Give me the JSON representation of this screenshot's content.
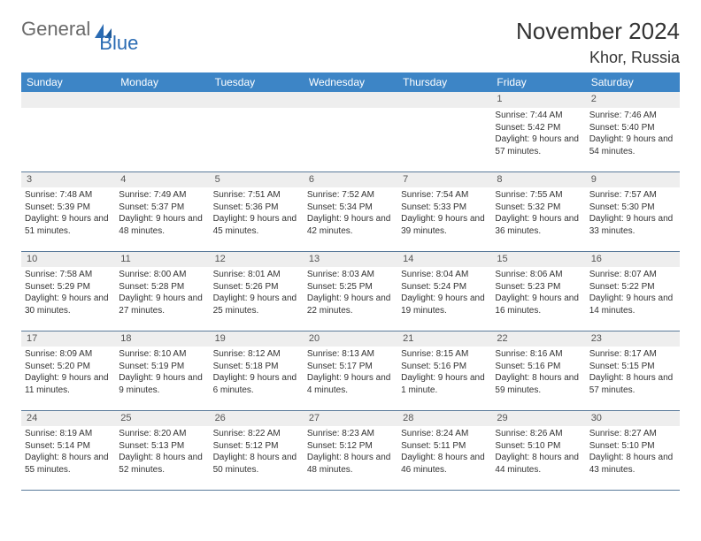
{
  "brand": {
    "part1": "General",
    "part2": "Blue"
  },
  "title": "November 2024",
  "location": "Khor, Russia",
  "colors": {
    "header_bg": "#3d85c6",
    "header_fg": "#ffffff",
    "daynum_bg": "#eeeeee",
    "border": "#5a7a9a",
    "text": "#333333",
    "logo_gray": "#6a6a6a",
    "logo_blue": "#2a6bb3"
  },
  "day_headers": [
    "Sunday",
    "Monday",
    "Tuesday",
    "Wednesday",
    "Thursday",
    "Friday",
    "Saturday"
  ],
  "weeks": [
    [
      {
        "num": "",
        "lines": []
      },
      {
        "num": "",
        "lines": []
      },
      {
        "num": "",
        "lines": []
      },
      {
        "num": "",
        "lines": []
      },
      {
        "num": "",
        "lines": []
      },
      {
        "num": "1",
        "lines": [
          "Sunrise: 7:44 AM",
          "Sunset: 5:42 PM",
          "Daylight: 9 hours and 57 minutes."
        ]
      },
      {
        "num": "2",
        "lines": [
          "Sunrise: 7:46 AM",
          "Sunset: 5:40 PM",
          "Daylight: 9 hours and 54 minutes."
        ]
      }
    ],
    [
      {
        "num": "3",
        "lines": [
          "Sunrise: 7:48 AM",
          "Sunset: 5:39 PM",
          "Daylight: 9 hours and 51 minutes."
        ]
      },
      {
        "num": "4",
        "lines": [
          "Sunrise: 7:49 AM",
          "Sunset: 5:37 PM",
          "Daylight: 9 hours and 48 minutes."
        ]
      },
      {
        "num": "5",
        "lines": [
          "Sunrise: 7:51 AM",
          "Sunset: 5:36 PM",
          "Daylight: 9 hours and 45 minutes."
        ]
      },
      {
        "num": "6",
        "lines": [
          "Sunrise: 7:52 AM",
          "Sunset: 5:34 PM",
          "Daylight: 9 hours and 42 minutes."
        ]
      },
      {
        "num": "7",
        "lines": [
          "Sunrise: 7:54 AM",
          "Sunset: 5:33 PM",
          "Daylight: 9 hours and 39 minutes."
        ]
      },
      {
        "num": "8",
        "lines": [
          "Sunrise: 7:55 AM",
          "Sunset: 5:32 PM",
          "Daylight: 9 hours and 36 minutes."
        ]
      },
      {
        "num": "9",
        "lines": [
          "Sunrise: 7:57 AM",
          "Sunset: 5:30 PM",
          "Daylight: 9 hours and 33 minutes."
        ]
      }
    ],
    [
      {
        "num": "10",
        "lines": [
          "Sunrise: 7:58 AM",
          "Sunset: 5:29 PM",
          "Daylight: 9 hours and 30 minutes."
        ]
      },
      {
        "num": "11",
        "lines": [
          "Sunrise: 8:00 AM",
          "Sunset: 5:28 PM",
          "Daylight: 9 hours and 27 minutes."
        ]
      },
      {
        "num": "12",
        "lines": [
          "Sunrise: 8:01 AM",
          "Sunset: 5:26 PM",
          "Daylight: 9 hours and 25 minutes."
        ]
      },
      {
        "num": "13",
        "lines": [
          "Sunrise: 8:03 AM",
          "Sunset: 5:25 PM",
          "Daylight: 9 hours and 22 minutes."
        ]
      },
      {
        "num": "14",
        "lines": [
          "Sunrise: 8:04 AM",
          "Sunset: 5:24 PM",
          "Daylight: 9 hours and 19 minutes."
        ]
      },
      {
        "num": "15",
        "lines": [
          "Sunrise: 8:06 AM",
          "Sunset: 5:23 PM",
          "Daylight: 9 hours and 16 minutes."
        ]
      },
      {
        "num": "16",
        "lines": [
          "Sunrise: 8:07 AM",
          "Sunset: 5:22 PM",
          "Daylight: 9 hours and 14 minutes."
        ]
      }
    ],
    [
      {
        "num": "17",
        "lines": [
          "Sunrise: 8:09 AM",
          "Sunset: 5:20 PM",
          "Daylight: 9 hours and 11 minutes."
        ]
      },
      {
        "num": "18",
        "lines": [
          "Sunrise: 8:10 AM",
          "Sunset: 5:19 PM",
          "Daylight: 9 hours and 9 minutes."
        ]
      },
      {
        "num": "19",
        "lines": [
          "Sunrise: 8:12 AM",
          "Sunset: 5:18 PM",
          "Daylight: 9 hours and 6 minutes."
        ]
      },
      {
        "num": "20",
        "lines": [
          "Sunrise: 8:13 AM",
          "Sunset: 5:17 PM",
          "Daylight: 9 hours and 4 minutes."
        ]
      },
      {
        "num": "21",
        "lines": [
          "Sunrise: 8:15 AM",
          "Sunset: 5:16 PM",
          "Daylight: 9 hours and 1 minute."
        ]
      },
      {
        "num": "22",
        "lines": [
          "Sunrise: 8:16 AM",
          "Sunset: 5:16 PM",
          "Daylight: 8 hours and 59 minutes."
        ]
      },
      {
        "num": "23",
        "lines": [
          "Sunrise: 8:17 AM",
          "Sunset: 5:15 PM",
          "Daylight: 8 hours and 57 minutes."
        ]
      }
    ],
    [
      {
        "num": "24",
        "lines": [
          "Sunrise: 8:19 AM",
          "Sunset: 5:14 PM",
          "Daylight: 8 hours and 55 minutes."
        ]
      },
      {
        "num": "25",
        "lines": [
          "Sunrise: 8:20 AM",
          "Sunset: 5:13 PM",
          "Daylight: 8 hours and 52 minutes."
        ]
      },
      {
        "num": "26",
        "lines": [
          "Sunrise: 8:22 AM",
          "Sunset: 5:12 PM",
          "Daylight: 8 hours and 50 minutes."
        ]
      },
      {
        "num": "27",
        "lines": [
          "Sunrise: 8:23 AM",
          "Sunset: 5:12 PM",
          "Daylight: 8 hours and 48 minutes."
        ]
      },
      {
        "num": "28",
        "lines": [
          "Sunrise: 8:24 AM",
          "Sunset: 5:11 PM",
          "Daylight: 8 hours and 46 minutes."
        ]
      },
      {
        "num": "29",
        "lines": [
          "Sunrise: 8:26 AM",
          "Sunset: 5:10 PM",
          "Daylight: 8 hours and 44 minutes."
        ]
      },
      {
        "num": "30",
        "lines": [
          "Sunrise: 8:27 AM",
          "Sunset: 5:10 PM",
          "Daylight: 8 hours and 43 minutes."
        ]
      }
    ]
  ]
}
